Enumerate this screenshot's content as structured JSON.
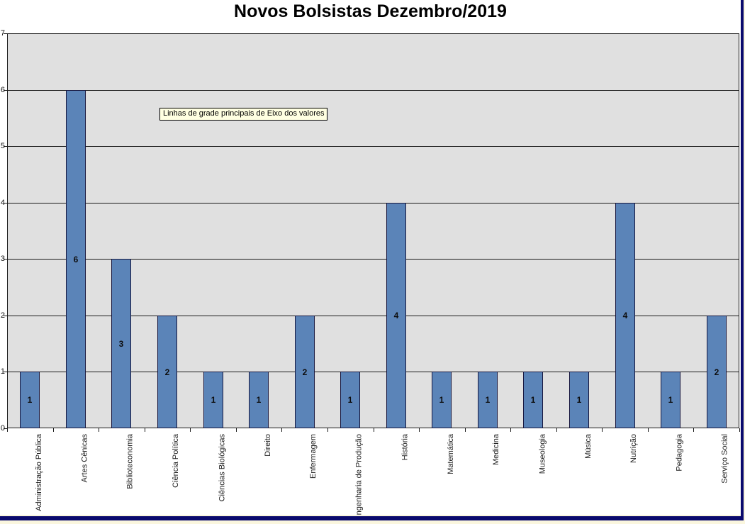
{
  "title": "Novos Bolsistas Dezembro/2019",
  "tooltip": "Linhas de grade principais de Eixo dos valores",
  "colors": {
    "bar_fill": "#5B84B8",
    "bar_border": "#17173F",
    "plot_background": "#E0E0E0",
    "gridline": "#1a1a1a",
    "frame_navy": "#0A0A6E",
    "frame_cream": "#FAF6DE",
    "tooltip_background": "#FFFFE1"
  },
  "chart_data": {
    "type": "bar",
    "title": "Novos Bolsistas Dezembro/2019",
    "categories": [
      "Administração Pública",
      "Artes Cênicas",
      "Biblioteconomia",
      "Ciência Política",
      "Ciências Biológicas",
      "Direito",
      "Enfermagem",
      "Engenharia de Produção",
      "História",
      "Matemática",
      "Medicina",
      "Museologia",
      "Música",
      "Nutrição",
      "Pedagogia",
      "Serviço Social"
    ],
    "values": [
      1,
      6,
      3,
      2,
      1,
      1,
      2,
      1,
      4,
      1,
      1,
      1,
      1,
      4,
      1,
      2
    ],
    "xlabel": "",
    "ylabel": "",
    "ylim": [
      0,
      7
    ],
    "yticks": [
      0,
      1,
      2,
      3,
      4,
      5,
      6,
      7
    ],
    "grid": true,
    "legend": false,
    "data_labels_position": "center",
    "x_labels_rotation_degrees": 90
  }
}
